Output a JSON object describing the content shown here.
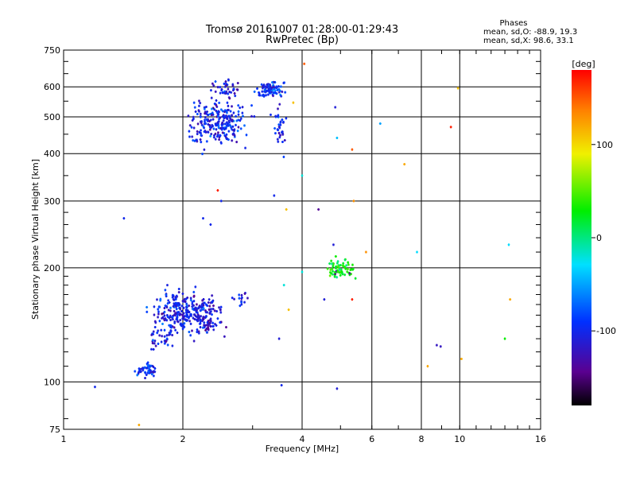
{
  "chart_data": {
    "type": "scatter",
    "title": "Tromsø 20161007 01:28:00-01:29:43",
    "subtitle": "RwPretec (Bp)",
    "xlabel": "Frequency [MHz]",
    "ylabel": "Stationary phase Virtual Height [km]",
    "x_scale": "log",
    "y_scale": "log",
    "xlim": [
      1,
      16
    ],
    "ylim": [
      75,
      750
    ],
    "x_ticks": [
      1,
      2,
      4,
      6,
      8,
      10,
      16
    ],
    "x_tick_labels": [
      "1",
      "2",
      "4",
      "6",
      "8",
      "10",
      "16"
    ],
    "y_ticks": [
      75,
      100,
      200,
      300,
      400,
      500,
      600,
      750
    ],
    "y_tick_labels": [
      "75",
      "100",
      "200",
      "300",
      "400",
      "500",
      "600",
      "750"
    ],
    "grid": true,
    "phase_stats": {
      "heading": "Phases",
      "line_o": "mean, sd,O: -88.9, 19.3",
      "line_x": "mean, sd,X:  98.6, 33.1"
    },
    "colorbar": {
      "label": "[deg]",
      "range": [
        -180,
        180
      ],
      "ticks": [
        100,
        0,
        -100
      ],
      "tick_labels": [
        "100",
        "0",
        "-100"
      ]
    },
    "clusters": [
      {
        "xc": 2.45,
        "yc": 480,
        "xs": 0.08,
        "ys": 0.07,
        "n": 240,
        "phase": -100
      },
      {
        "xc": 2.6,
        "yc": 590,
        "xs": 0.04,
        "ys": 0.03,
        "n": 40,
        "phase": -110
      },
      {
        "xc": 3.35,
        "yc": 590,
        "xs": 0.04,
        "ys": 0.02,
        "n": 90,
        "phase": -90
      },
      {
        "xc": 3.5,
        "yc": 470,
        "xs": 0.02,
        "ys": 0.07,
        "n": 35,
        "phase": -100
      },
      {
        "xc": 1.95,
        "yc": 152,
        "xs": 0.07,
        "ys": 0.06,
        "n": 230,
        "phase": -100
      },
      {
        "xc": 2.3,
        "yc": 150,
        "xs": 0.05,
        "ys": 0.06,
        "n": 110,
        "phase": -110
      },
      {
        "xc": 1.62,
        "yc": 108,
        "xs": 0.03,
        "ys": 0.02,
        "n": 45,
        "phase": -95
      },
      {
        "xc": 1.75,
        "yc": 130,
        "xs": 0.03,
        "ys": 0.04,
        "n": 30,
        "phase": -100
      },
      {
        "xc": 5.0,
        "yc": 198,
        "xs": 0.04,
        "ys": 0.03,
        "n": 70,
        "phase": 30
      },
      {
        "xc": 2.8,
        "yc": 165,
        "xs": 0.03,
        "ys": 0.02,
        "n": 15,
        "phase": -100
      }
    ],
    "points": [
      {
        "x": 1.2,
        "y": 97,
        "phase": -100
      },
      {
        "x": 1.42,
        "y": 270,
        "phase": -100
      },
      {
        "x": 1.55,
        "y": 77,
        "phase": 120
      },
      {
        "x": 2.25,
        "y": 270,
        "phase": -100
      },
      {
        "x": 2.35,
        "y": 260,
        "phase": -100
      },
      {
        "x": 2.5,
        "y": 300,
        "phase": -100
      },
      {
        "x": 2.45,
        "y": 320,
        "phase": 170
      },
      {
        "x": 3.4,
        "y": 310,
        "phase": -100
      },
      {
        "x": 3.5,
        "y": 130,
        "phase": -110
      },
      {
        "x": 3.55,
        "y": 98,
        "phase": -100
      },
      {
        "x": 3.6,
        "y": 180,
        "phase": -20
      },
      {
        "x": 3.7,
        "y": 155,
        "phase": 110
      },
      {
        "x": 3.65,
        "y": 285,
        "phase": 110
      },
      {
        "x": 3.8,
        "y": 545,
        "phase": 110
      },
      {
        "x": 4.0,
        "y": 350,
        "phase": -20
      },
      {
        "x": 4.0,
        "y": 195,
        "phase": -20
      },
      {
        "x": 4.05,
        "y": 690,
        "phase": 150
      },
      {
        "x": 4.4,
        "y": 285,
        "phase": -140
      },
      {
        "x": 4.55,
        "y": 165,
        "phase": -110
      },
      {
        "x": 4.8,
        "y": 230,
        "phase": -110
      },
      {
        "x": 4.85,
        "y": 530,
        "phase": -110
      },
      {
        "x": 4.9,
        "y": 440,
        "phase": -40
      },
      {
        "x": 4.9,
        "y": 96,
        "phase": -110
      },
      {
        "x": 5.35,
        "y": 410,
        "phase": 150
      },
      {
        "x": 5.4,
        "y": 300,
        "phase": 130
      },
      {
        "x": 5.35,
        "y": 165,
        "phase": 170
      },
      {
        "x": 5.8,
        "y": 220,
        "phase": 130
      },
      {
        "x": 6.3,
        "y": 480,
        "phase": -50
      },
      {
        "x": 7.25,
        "y": 375,
        "phase": 120
      },
      {
        "x": 7.8,
        "y": 220,
        "phase": -30
      },
      {
        "x": 8.3,
        "y": 110,
        "phase": 120
      },
      {
        "x": 8.75,
        "y": 125,
        "phase": -120
      },
      {
        "x": 8.95,
        "y": 124,
        "phase": -120
      },
      {
        "x": 9.5,
        "y": 470,
        "phase": 170
      },
      {
        "x": 9.9,
        "y": 595,
        "phase": 110
      },
      {
        "x": 10.1,
        "y": 115,
        "phase": 120
      },
      {
        "x": 13.0,
        "y": 130,
        "phase": 30
      },
      {
        "x": 13.3,
        "y": 230,
        "phase": -30
      },
      {
        "x": 13.4,
        "y": 165,
        "phase": 120
      }
    ]
  }
}
